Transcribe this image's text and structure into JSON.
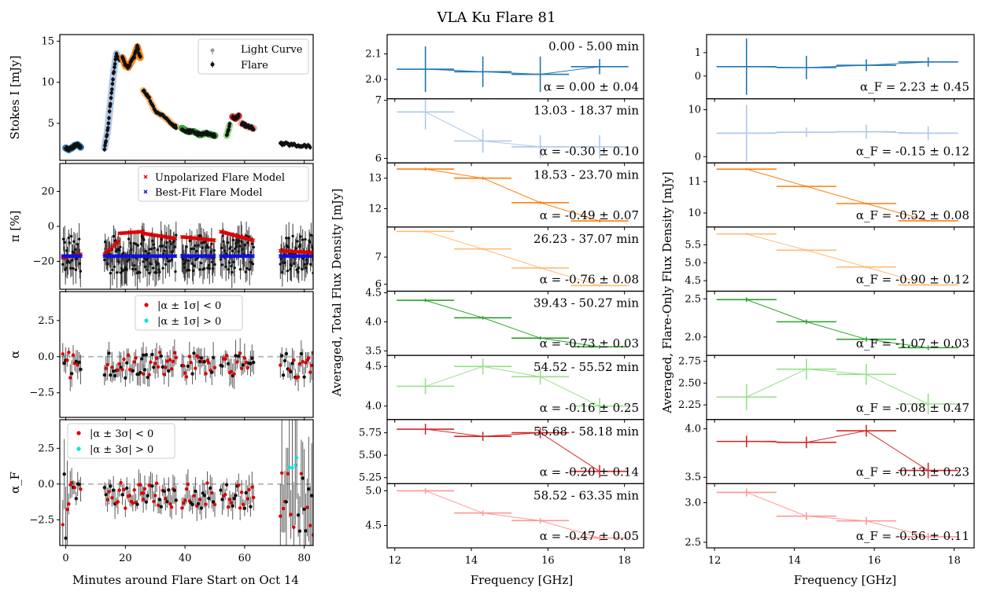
{
  "title": "VLA Ku Flare 81",
  "left_column": {
    "xlabel": "Minutes around Flare Start on Oct 14",
    "xticks": [
      0,
      20,
      40,
      60,
      80
    ],
    "xlim": [
      -2,
      83
    ],
    "panels": [
      {
        "ylabel": "Stokes I [mJy]",
        "yticks": [
          5,
          10,
          15
        ],
        "ylim": [
          0.5,
          15.8
        ],
        "legend": [
          "Light Curve",
          "Flare"
        ]
      },
      {
        "ylabel": "π [%]",
        "yticks": [
          20,
          0,
          -20
        ],
        "ytick_labels": [
          "20",
          "0",
          "−20"
        ],
        "ylim": [
          -36,
          36
        ],
        "legend": [
          "Unpolarized Flare Model",
          "Best-Fit Flare Model"
        ]
      },
      {
        "ylabel": "α",
        "yticks": [
          2.5,
          0.0,
          -2.5
        ],
        "ytick_labels": [
          "2.5",
          "0.0",
          "−2.5"
        ],
        "ylim": [
          -4.2,
          4.5
        ],
        "legend": [
          "|α ± 1σ| < 0",
          "|α ± 1σ| > 0"
        ]
      },
      {
        "ylabel": "α_F",
        "yticks": [
          2.5,
          0.0,
          -2.5
        ],
        "ytick_labels": [
          "2.5",
          "0.0",
          "−2.5"
        ],
        "ylim": [
          -4.3,
          4.5
        ],
        "legend": [
          "|α ± 3σ| < 0",
          "|α ± 3σ| > 0"
        ]
      }
    ]
  },
  "middle_column": {
    "ylabel": "Averaged, Total Flux Density [mJy]",
    "xlabel": "Frequency [GHz]",
    "xticks": [
      12,
      14,
      16,
      18
    ],
    "xlim": [
      11.8,
      18.5
    ]
  },
  "right_column": {
    "ylabel": "Averaged, Flare-Only Flux Density [mJy]",
    "xlabel": "Frequency [GHz]",
    "xticks": [
      12,
      14,
      16,
      18
    ],
    "xlim": [
      11.8,
      18.5
    ]
  },
  "chart_data": {
    "type": "line",
    "title": "VLA Ku Flare 81",
    "light_curve": {
      "xlabel": "Minutes around Flare Start on Oct 14",
      "ylabel": "Stokes I [mJy]",
      "segments": [
        {
          "t": [
            0,
            1,
            2,
            3,
            4,
            5
          ],
          "I": [
            2.0,
            1.8,
            2.0,
            2.3,
            2.4,
            2.1
          ]
        },
        {
          "t": [
            13,
            14,
            15,
            16,
            17,
            18
          ],
          "I": [
            2.0,
            4.0,
            7.5,
            11.0,
            13.5,
            12.8
          ]
        },
        {
          "t": [
            19,
            20,
            21,
            22,
            23,
            24,
            25
          ],
          "I": [
            13.0,
            12.0,
            11.8,
            12.5,
            13.2,
            14.3,
            13.0
          ]
        },
        {
          "t": [
            26,
            28,
            30,
            32,
            34,
            36,
            37
          ],
          "I": [
            9.0,
            8.0,
            6.5,
            6.0,
            5.5,
            4.8,
            4.6
          ]
        },
        {
          "t": [
            39,
            41,
            43,
            45,
            47,
            49,
            50
          ],
          "I": [
            4.4,
            4.0,
            4.0,
            3.6,
            3.8,
            3.6,
            3.5
          ]
        },
        {
          "t": [
            54,
            55
          ],
          "I": [
            3.5,
            4.8
          ]
        },
        {
          "t": [
            56,
            57,
            58
          ],
          "I": [
            5.8,
            5.6,
            5.9
          ]
        },
        {
          "t": [
            59,
            60,
            61,
            62,
            63
          ],
          "I": [
            5.0,
            4.8,
            4.6,
            4.5,
            4.4
          ]
        },
        {
          "t": [
            72,
            74,
            76,
            78,
            80,
            82
          ],
          "I": [
            2.5,
            2.5,
            2.4,
            2.3,
            2.3,
            2.2
          ]
        }
      ]
    },
    "spectra_time_ranges": [
      "0.00 - 5.00 min",
      "13.03 - 18.37 min",
      "18.53 - 23.70 min",
      "26.23 - 37.07 min",
      "39.43 - 50.27 min",
      "54.52 - 55.52 min",
      "55.68 - 58.18 min",
      "58.52 - 63.35 min"
    ],
    "freq_bins_GHz": [
      12.8,
      14.3,
      15.8,
      17.35
    ],
    "freq_bin_halfwidth_GHz": 0.75,
    "total_flux_spectra": [
      {
        "values": [
          2.04,
          2.03,
          2.02,
          2.05
        ],
        "errors": [
          0.09,
          0.06,
          0.07,
          0.03
        ],
        "ylim": [
          1.93,
          2.17
        ],
        "yticks": [
          2.0,
          2.1
        ],
        "ytick_labels": [
          "2.0",
          "2.1"
        ],
        "alpha_text": "α = 0.00 ± 0.04"
      },
      {
        "values": [
          6.8,
          6.3,
          6.2,
          6.2
        ],
        "errors": [
          0.3,
          0.2,
          0.2,
          0.2
        ],
        "ylim": [
          5.95,
          7.0
        ],
        "yticks": [
          6,
          7
        ],
        "ytick_labels": [
          "6",
          "7"
        ],
        "alpha_text": "α = -0.30 ± 0.10"
      },
      {
        "values": [
          13.3,
          13.0,
          12.2,
          11.6
        ],
        "errors": [
          0.05,
          0.05,
          0.05,
          0.05
        ],
        "ylim": [
          11.45,
          13.45
        ],
        "yticks": [
          12,
          13
        ],
        "ytick_labels": [
          "12",
          "13"
        ],
        "alpha_text": "α = -0.49 ± 0.07"
      },
      {
        "values": [
          7.95,
          7.3,
          6.6,
          5.95
        ],
        "errors": [
          0.05,
          0.05,
          0.05,
          0.05
        ],
        "ylim": [
          5.8,
          8.05
        ],
        "yticks": [
          6,
          7
        ],
        "ytick_labels": [
          "6",
          "7"
        ],
        "alpha_text": "α = -0.76 ± 0.08"
      },
      {
        "values": [
          4.37,
          4.07,
          3.72,
          3.57
        ],
        "errors": [
          0.03,
          0.03,
          0.03,
          0.03
        ],
        "ylim": [
          3.45,
          4.5
        ],
        "yticks": [
          3.5,
          4.0,
          4.5
        ],
        "ytick_labels": [
          "3.5",
          "4.0",
          "4.5"
        ],
        "alpha_text": "α = -0.73 ± 0.03"
      },
      {
        "values": [
          4.25,
          4.5,
          4.37,
          4.0
        ],
        "errors": [
          0.1,
          0.1,
          0.1,
          0.1
        ],
        "ylim": [
          3.85,
          4.62
        ],
        "yticks": [
          4.0,
          4.5
        ],
        "ytick_labels": [
          "4.0",
          "4.5"
        ],
        "alpha_text": "α = -0.16 ± 0.25"
      },
      {
        "values": [
          5.79,
          5.71,
          5.75,
          5.32
        ],
        "errors": [
          0.06,
          0.05,
          0.06,
          0.07
        ],
        "ylim": [
          5.2,
          5.88
        ],
        "yticks": [
          5.25,
          5.5,
          5.75
        ],
        "ytick_labels": [
          "5.25",
          "5.50",
          "5.75"
        ],
        "alpha_text": "α = -0.20 ± 0.14"
      },
      {
        "values": [
          5.0,
          4.68,
          4.57,
          4.32
        ],
        "errors": [
          0.04,
          0.04,
          0.04,
          0.04
        ],
        "ylim": [
          4.2,
          5.08
        ],
        "yticks": [
          4.5,
          5.0
        ],
        "ytick_labels": [
          "4.5",
          "5.0"
        ],
        "alpha_text": "α = -0.47 ± 0.05"
      }
    ],
    "flare_only_spectra": [
      {
        "values": [
          0.4,
          0.36,
          0.46,
          0.6
        ],
        "errors": [
          1.2,
          0.5,
          0.25,
          0.2
        ],
        "ylim": [
          -0.9,
          1.7
        ],
        "yticks": [
          0,
          1
        ],
        "ytick_labels": [
          "0",
          "1"
        ],
        "alpha_text": "α_F = 2.23 ± 0.45"
      },
      {
        "values": [
          5.0,
          5.2,
          5.3,
          5.0
        ],
        "errors": [
          6.0,
          1.0,
          1.5,
          1.5
        ],
        "ylim": [
          -1.0,
          12.0
        ],
        "yticks": [
          0,
          10
        ],
        "ytick_labels": [
          "0",
          "10"
        ],
        "alpha_text": "α_F = -0.15 ± 0.12"
      },
      {
        "values": [
          11.4,
          10.85,
          10.3,
          9.75
        ],
        "errors": [
          0.03,
          0.03,
          0.03,
          0.03
        ],
        "ylim": [
          9.6,
          11.55
        ],
        "yticks": [
          10,
          11
        ],
        "ytick_labels": [
          "10",
          "11"
        ],
        "alpha_text": "α_F = -0.52 ± 0.08"
      },
      {
        "values": [
          5.8,
          5.35,
          4.88,
          4.38
        ],
        "errors": [
          0.03,
          0.03,
          0.03,
          0.03
        ],
        "ylim": [
          4.25,
          5.95
        ],
        "yticks": [
          4.5,
          5.0,
          5.5
        ],
        "ytick_labels": [
          "4.5",
          "5.0",
          "5.5"
        ],
        "alpha_text": "α_F = -0.90 ± 0.12"
      },
      {
        "values": [
          2.49,
          2.2,
          1.97,
          1.86
        ],
        "errors": [
          0.03,
          0.03,
          0.03,
          0.03
        ],
        "ylim": [
          1.78,
          2.58
        ],
        "yticks": [
          2.0,
          2.5
        ],
        "ytick_labels": [
          "2.0",
          "2.5"
        ],
        "alpha_text": "α_F = -1.07 ± 0.03"
      },
      {
        "values": [
          2.34,
          2.66,
          2.6,
          2.26
        ],
        "errors": [
          0.15,
          0.12,
          0.12,
          0.12
        ],
        "ylim": [
          2.1,
          2.8
        ],
        "yticks": [
          2.25,
          2.5,
          2.75
        ],
        "ytick_labels": [
          "2.25",
          "2.50",
          "2.75"
        ],
        "alpha_text": "α_F = -0.08 ± 0.47"
      },
      {
        "values": [
          3.87,
          3.86,
          3.98,
          3.57
        ],
        "errors": [
          0.06,
          0.06,
          0.06,
          0.08
        ],
        "ylim": [
          3.45,
          4.08
        ],
        "yticks": [
          3.5,
          4.0
        ],
        "ytick_labels": [
          "3.5",
          "4.0"
        ],
        "alpha_text": "α_F = -0.13 ± 0.23"
      },
      {
        "values": [
          3.13,
          2.83,
          2.77,
          2.57
        ],
        "errors": [
          0.05,
          0.05,
          0.05,
          0.05
        ],
        "ylim": [
          2.45,
          3.22
        ],
        "yticks": [
          2.5,
          3.0
        ],
        "ytick_labels": [
          "2.5",
          "3.0"
        ],
        "alpha_text": "α_F = -0.56 ± 0.11"
      }
    ],
    "colors": [
      "#1f77b4",
      "#aec7e8",
      "#ff7f0e",
      "#ffbb78",
      "#2ca02c",
      "#98df8a",
      "#d62728",
      "#ff9896"
    ]
  }
}
